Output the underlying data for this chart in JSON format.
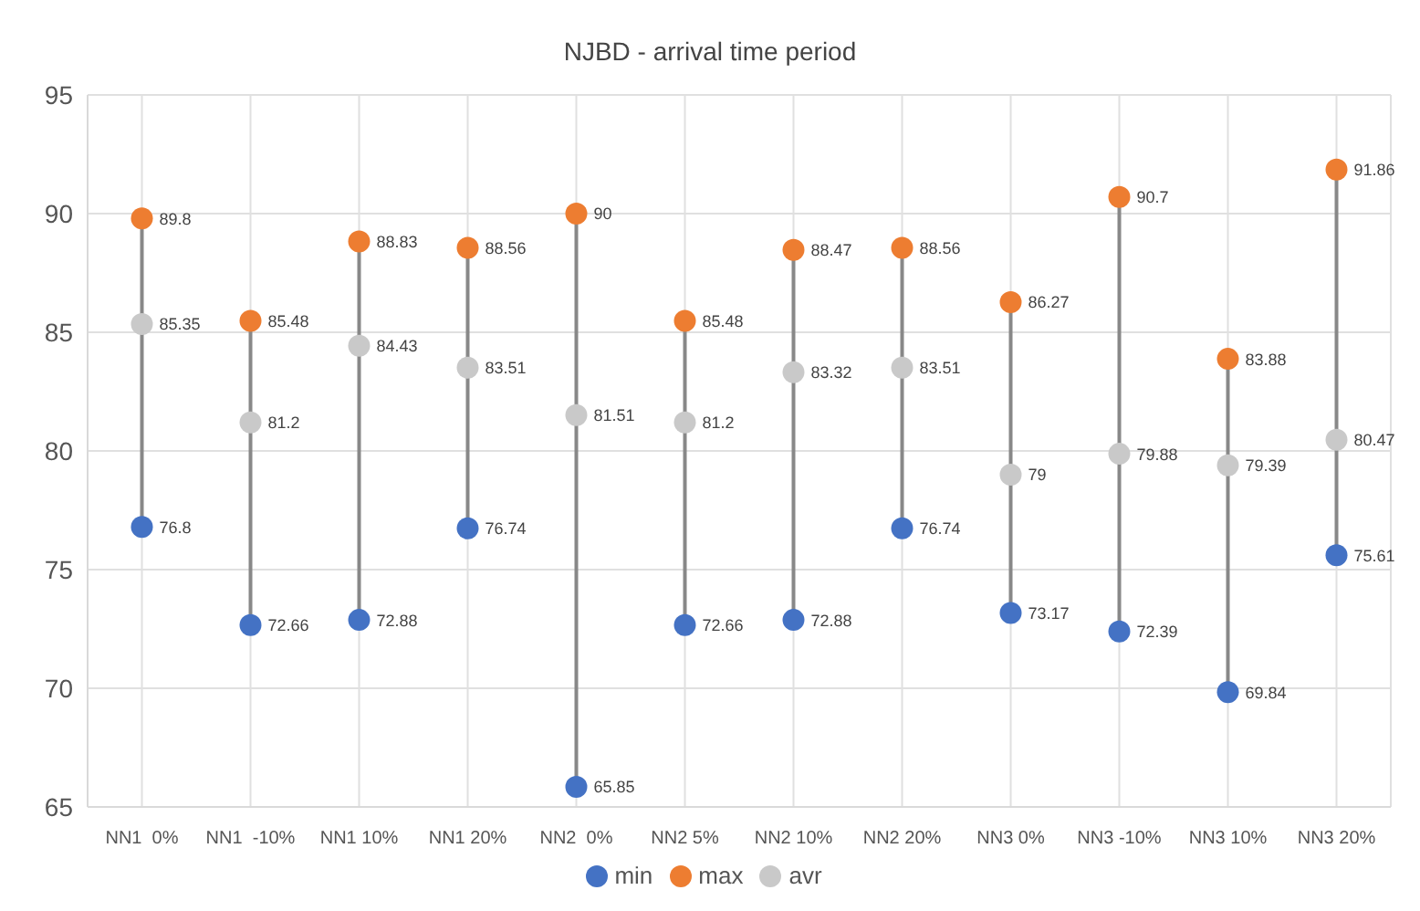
{
  "chart_data": {
    "type": "scatter",
    "title": "NJBD - arrival time period",
    "categories": [
      "NN1  0%",
      "NN1  -10%",
      "NN1 10%",
      "NN1 20%",
      "NN2  0%",
      "NN2 5%",
      "NN2 10%",
      "NN2 20%",
      "NN3 0%",
      "NN3 -10%",
      "NN3 10%",
      "NN3 20%"
    ],
    "series": [
      {
        "name": "min",
        "color": "#4472c4",
        "values": [
          76.8,
          72.66,
          72.88,
          76.74,
          65.85,
          72.66,
          72.88,
          76.74,
          73.17,
          72.39,
          69.84,
          75.61
        ]
      },
      {
        "name": "max",
        "color": "#ed7d31",
        "values": [
          89.8,
          85.48,
          88.83,
          88.56,
          90,
          85.48,
          88.47,
          88.56,
          86.27,
          90.7,
          83.88,
          91.86
        ]
      },
      {
        "name": "avr",
        "color": "#c9c9c9",
        "values": [
          85.35,
          81.2,
          84.43,
          83.51,
          81.51,
          81.2,
          83.32,
          83.51,
          79,
          79.88,
          79.39,
          80.47
        ]
      }
    ],
    "ylim": [
      65,
      95
    ],
    "yticks": [
      65,
      70,
      75,
      80,
      85,
      90,
      95
    ],
    "grid": true,
    "legend": "bottom",
    "marker": "circle",
    "data_labels": true
  }
}
